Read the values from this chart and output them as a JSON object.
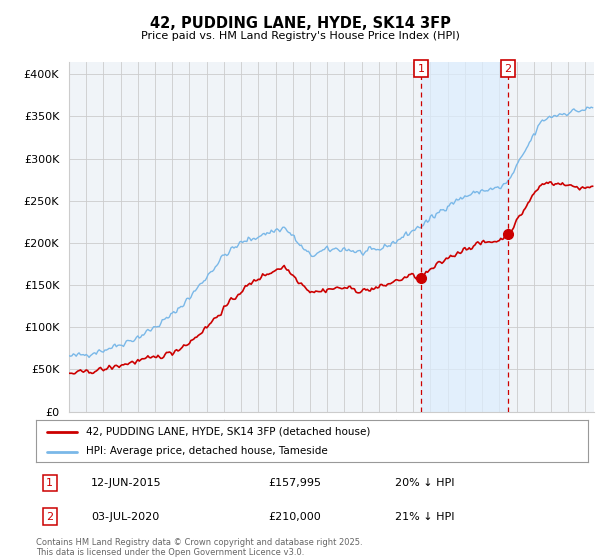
{
  "title": "42, PUDDING LANE, HYDE, SK14 3FP",
  "subtitle": "Price paid vs. HM Land Registry's House Price Index (HPI)",
  "yticks": [
    0,
    50000,
    100000,
    150000,
    200000,
    250000,
    300000,
    350000,
    400000
  ],
  "ytick_labels": [
    "£0",
    "£50K",
    "£100K",
    "£150K",
    "£200K",
    "£250K",
    "£300K",
    "£350K",
    "£400K"
  ],
  "ylim": [
    0,
    415000
  ],
  "xlim_start": 1995.0,
  "xlim_end": 2025.5,
  "hpi_color": "#7ab8e8",
  "price_color": "#cc0000",
  "vline_color": "#cc0000",
  "shade_color": "#ddeeff",
  "grid_color": "#cccccc",
  "bg_color": "#f0f4f8",
  "legend_label_red": "42, PUDDING LANE, HYDE, SK14 3FP (detached house)",
  "legend_label_blue": "HPI: Average price, detached house, Tameside",
  "footnote": "Contains HM Land Registry data © Crown copyright and database right 2025.\nThis data is licensed under the Open Government Licence v3.0.",
  "sale1_label": "1",
  "sale1_date": "12-JUN-2015",
  "sale1_price": "£157,995",
  "sale1_hpi": "20% ↓ HPI",
  "sale1_year": 2015.44,
  "sale1_value": 157995,
  "sale2_label": "2",
  "sale2_date": "03-JUL-2020",
  "sale2_price": "£210,000",
  "sale2_hpi": "21% ↓ HPI",
  "sale2_year": 2020.5,
  "sale2_value": 210000
}
